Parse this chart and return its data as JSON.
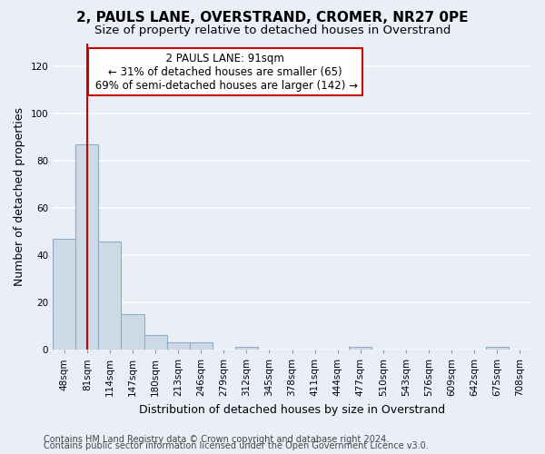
{
  "title1": "2, PAULS LANE, OVERSTRAND, CROMER, NR27 0PE",
  "title2": "Size of property relative to detached houses in Overstrand",
  "xlabel": "Distribution of detached houses by size in Overstrand",
  "ylabel": "Number of detached properties",
  "bar_labels": [
    "48sqm",
    "81sqm",
    "114sqm",
    "147sqm",
    "180sqm",
    "213sqm",
    "246sqm",
    "279sqm",
    "312sqm",
    "345sqm",
    "378sqm",
    "411sqm",
    "444sqm",
    "477sqm",
    "510sqm",
    "543sqm",
    "576sqm",
    "609sqm",
    "642sqm",
    "675sqm",
    "708sqm"
  ],
  "bar_values": [
    47,
    87,
    46,
    15,
    6,
    3,
    3,
    0,
    1,
    0,
    0,
    0,
    0,
    1,
    0,
    0,
    0,
    0,
    0,
    1,
    0
  ],
  "bar_color": "#cdd9e5",
  "bar_edge_color": "#8aaec8",
  "ylim": [
    0,
    130
  ],
  "yticks": [
    0,
    20,
    40,
    60,
    80,
    100,
    120
  ],
  "vline_x": 1,
  "vline_color": "#cc0000",
  "annotation_text": "  2 PAULS LANE: 91sqm  \n← 31% of detached houses are smaller (65)\n 69% of semi-detached houses are larger (142) →",
  "annotation_box_color": "#ffffff",
  "annotation_box_edge": "#cc0000",
  "footer1": "Contains HM Land Registry data © Crown copyright and database right 2024.",
  "footer2": "Contains public sector information licensed under the Open Government Licence v3.0.",
  "bg_color": "#eaeff7",
  "grid_color": "#ffffff",
  "title1_fontsize": 11,
  "title2_fontsize": 9.5,
  "axis_label_fontsize": 9,
  "tick_fontsize": 7.5,
  "footer_fontsize": 7,
  "annot_fontsize": 8.5
}
